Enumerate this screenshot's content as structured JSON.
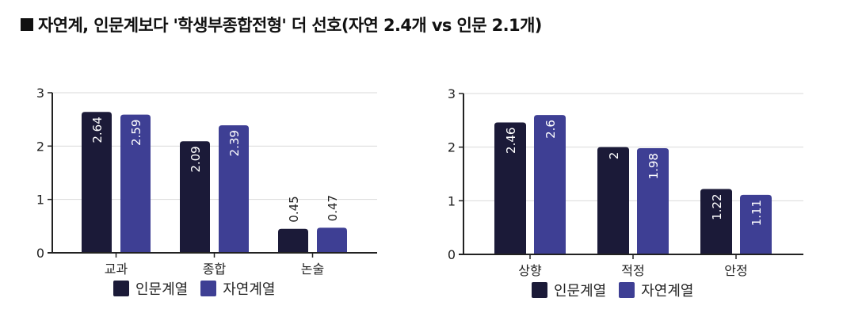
{
  "title": "자연계, 인문계보다 '학생부종합전형' 더 선호(자연 2.4개 vs 인문 2.1개)",
  "colors": {
    "humanities": "#1b1a38",
    "natural": "#3e3f94",
    "axis": "#222222",
    "grid": "#d9d9d9"
  },
  "legend": {
    "humanities": "인문계열",
    "natural": "자연계열"
  },
  "chart_data": [
    {
      "type": "bar",
      "title": "",
      "xlabel": "",
      "ylabel": "",
      "ylim": [
        0,
        3
      ],
      "yticks": [
        0,
        1,
        2,
        3
      ],
      "grid": true,
      "legend_position": "bottom",
      "categories": [
        "교과",
        "종합",
        "논술"
      ],
      "series": [
        {
          "name": "인문계열",
          "values": [
            2.64,
            2.09,
            0.45
          ]
        },
        {
          "name": "자연계열",
          "values": [
            2.59,
            2.39,
            0.47
          ]
        }
      ]
    },
    {
      "type": "bar",
      "title": "",
      "xlabel": "",
      "ylabel": "",
      "ylim": [
        0,
        3
      ],
      "yticks": [
        0,
        1,
        2,
        3
      ],
      "grid": true,
      "legend_position": "bottom",
      "categories": [
        "상향",
        "적정",
        "안정"
      ],
      "series": [
        {
          "name": "인문계열",
          "values": [
            2.46,
            2,
            1.22
          ]
        },
        {
          "name": "자연계열",
          "values": [
            2.6,
            1.98,
            1.11
          ]
        }
      ]
    }
  ]
}
